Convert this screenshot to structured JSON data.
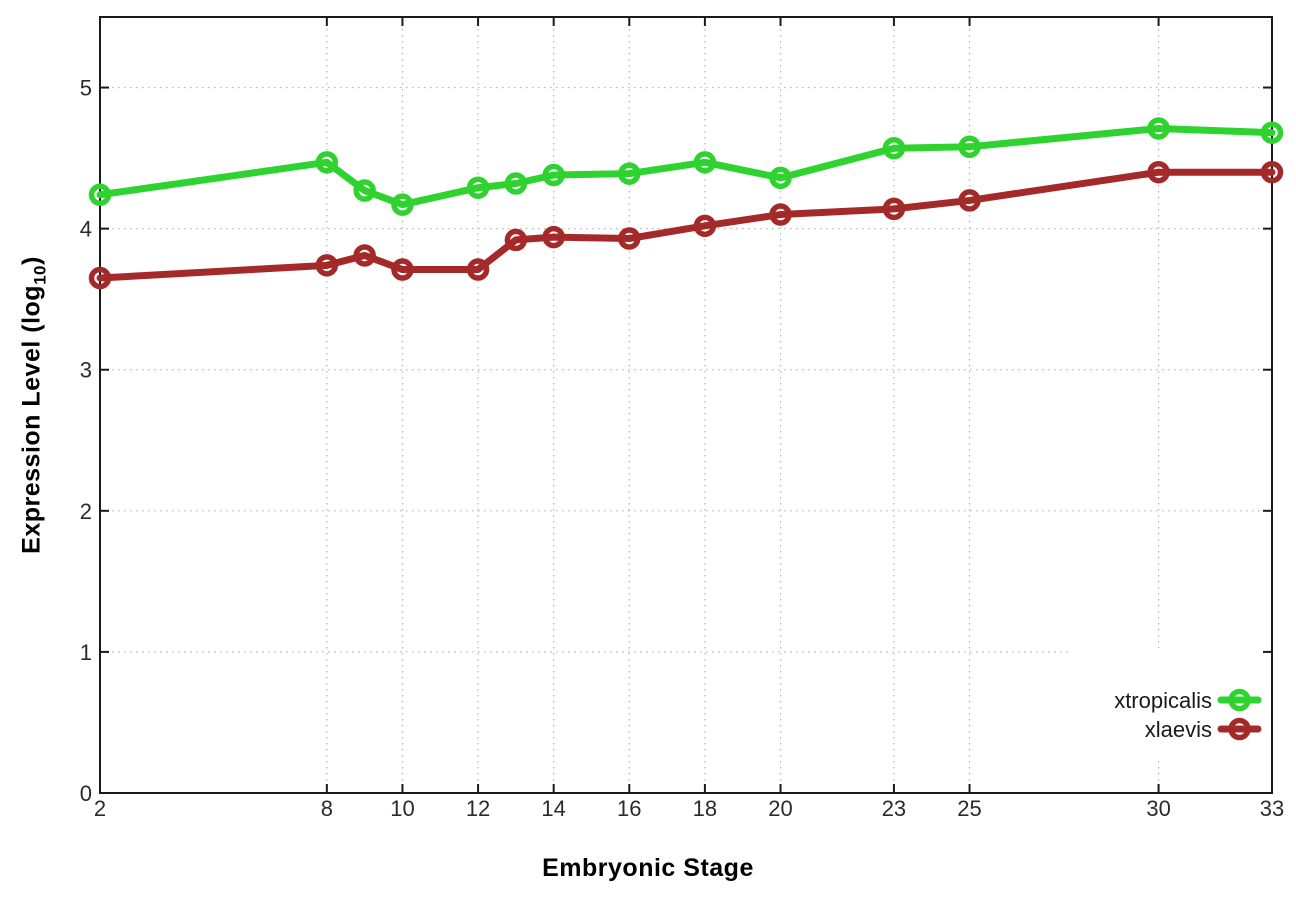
{
  "chart_data": {
    "type": "line",
    "title": "",
    "xlabel": "Embryonic Stage",
    "ylabel": "Expression Level (log10)",
    "ylabel_parts": {
      "pre": "Expression Level (log",
      "sub": "10",
      "post": ")"
    },
    "x": [
      2,
      8,
      9,
      10,
      12,
      13,
      14,
      16,
      18,
      20,
      23,
      25,
      30,
      33
    ],
    "xticks": [
      2,
      8,
      10,
      12,
      14,
      16,
      18,
      20,
      23,
      25,
      30,
      33
    ],
    "yticks": [
      0,
      1,
      2,
      3,
      4,
      5
    ],
    "xlim": [
      2,
      33
    ],
    "ylim": [
      0,
      5.5
    ],
    "grid": true,
    "legend_position": "bottom-right",
    "series": [
      {
        "name": "xtropicalis",
        "color": "#2fd32f",
        "values": [
          4.24,
          4.47,
          4.27,
          4.17,
          4.29,
          4.32,
          4.38,
          4.39,
          4.47,
          4.36,
          4.57,
          4.58,
          4.71,
          4.68
        ]
      },
      {
        "name": "xlaevis",
        "color": "#a42a2a",
        "values": [
          3.65,
          3.74,
          3.81,
          3.71,
          3.71,
          3.92,
          3.94,
          3.93,
          4.02,
          4.1,
          4.14,
          4.2,
          4.4,
          4.4
        ]
      }
    ],
    "colors": {
      "axis": "#1a1a1a",
      "grid": "#b5b5b5",
      "tick_label": "#2b2b2b",
      "background": "#ffffff"
    }
  }
}
